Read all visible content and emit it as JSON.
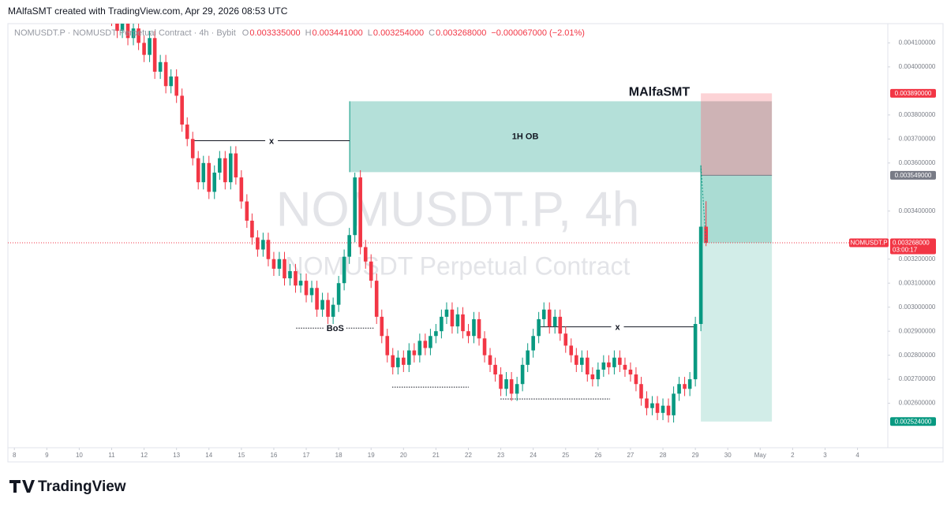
{
  "header": {
    "credit": "MAlfaSMT created with TradingView.com, Apr 29, 2026 08:53 UTC"
  },
  "legend": {
    "symbol_line": "NOMUSDT.P · NOMUSDT Perpetual Contract · 4h · Bybit",
    "ohlc": [
      {
        "key": "O",
        "value": "0.003335000"
      },
      {
        "key": "H",
        "value": "0.003441000"
      },
      {
        "key": "L",
        "value": "0.003254000"
      },
      {
        "key": "C",
        "value": "0.003268000"
      }
    ],
    "change": "−0.000067000 (−2.01%)"
  },
  "watermark": {
    "main": "NOMUSDT.P, 4h",
    "sub": "NOMUSDT Perpetual Contract"
  },
  "footer": {
    "brand": "TradingView"
  },
  "chart_data": {
    "type": "candlestick",
    "up_color": "#089981",
    "down_color": "#f23645",
    "grid": false,
    "xlim": [
      7.8,
      34.57
    ],
    "ylim": [
      0.002415,
      0.00418
    ],
    "xticks": [
      8,
      9,
      10,
      11,
      12,
      13,
      14,
      15,
      16,
      17,
      18,
      19,
      20,
      21,
      22,
      23,
      24,
      25,
      26,
      27,
      28,
      29,
      30,
      {
        "value": 31,
        "label": "May"
      },
      {
        "value": 32,
        "label": "2"
      },
      {
        "value": 33,
        "label": "3"
      },
      {
        "value": 34,
        "label": "4"
      }
    ],
    "yticks": [
      {
        "value": 0.0041,
        "label": "0.004100000"
      },
      {
        "value": 0.004,
        "label": "0.004000000"
      },
      {
        "value": 0.0038,
        "label": "0.003800000"
      },
      {
        "value": 0.0037,
        "label": "0.003700000"
      },
      {
        "value": 0.0036,
        "label": "0.003600000"
      },
      {
        "value": 0.0034,
        "label": "0.003400000"
      },
      {
        "value": 0.0032,
        "label": "0.003200000"
      },
      {
        "value": 0.0031,
        "label": "0.003100000"
      },
      {
        "value": 0.003,
        "label": "0.003000000"
      },
      {
        "value": 0.0029,
        "label": "0.002900000"
      },
      {
        "value": 0.0028,
        "label": "0.002800000"
      },
      {
        "value": 0.0027,
        "label": "0.002700000"
      },
      {
        "value": 0.0026,
        "label": "0.002600000"
      }
    ],
    "x": [
      11,
      11.17,
      11.33,
      11.5,
      11.67,
      11.83,
      12,
      12.17,
      12.33,
      12.5,
      12.67,
      12.83,
      13,
      13.17,
      13.33,
      13.5,
      13.67,
      13.83,
      14,
      14.17,
      14.33,
      14.5,
      14.67,
      14.83,
      15,
      15.17,
      15.33,
      15.5,
      15.67,
      15.83,
      16,
      16.17,
      16.33,
      16.5,
      16.67,
      16.83,
      17,
      17.17,
      17.33,
      17.5,
      17.67,
      17.83,
      18,
      18.17,
      18.33,
      18.5,
      18.67,
      18.83,
      19,
      19.17,
      19.33,
      19.5,
      19.67,
      19.83,
      20,
      20.17,
      20.33,
      20.5,
      20.67,
      20.83,
      21,
      21.17,
      21.33,
      21.5,
      21.67,
      21.83,
      22,
      22.17,
      22.33,
      22.5,
      22.67,
      22.83,
      23,
      23.17,
      23.33,
      23.5,
      23.67,
      23.83,
      24,
      24.17,
      24.33,
      24.5,
      24.67,
      24.83,
      25,
      25.17,
      25.33,
      25.5,
      25.67,
      25.83,
      26,
      26.17,
      26.33,
      26.5,
      26.67,
      26.83,
      27,
      27.17,
      27.33,
      27.5,
      27.67,
      27.83,
      28,
      28.17,
      28.33,
      28.5,
      28.67,
      28.83,
      29,
      29.17,
      29.33
    ],
    "open": [
      0.00423,
      0.0042,
      0.00415,
      0.00418,
      0.00412,
      0.00416,
      0.0041,
      0.00405,
      0.00412,
      0.00398,
      0.00402,
      0.00392,
      0.00396,
      0.00388,
      0.00376,
      0.0037,
      0.00362,
      0.00352,
      0.0036,
      0.00348,
      0.00356,
      0.00362,
      0.00352,
      0.00364,
      0.00354,
      0.00344,
      0.00336,
      0.00329,
      0.00324,
      0.00328,
      0.0032,
      0.00316,
      0.0032,
      0.00312,
      0.00315,
      0.00309,
      0.00311,
      0.00305,
      0.00308,
      0.00299,
      0.00303,
      0.00296,
      0.00301,
      0.0031,
      0.00321,
      0.0033,
      0.00354,
      0.00325,
      0.00319,
      0.00311,
      0.00296,
      0.00288,
      0.0028,
      0.00275,
      0.00279,
      0.00276,
      0.00282,
      0.0028,
      0.00286,
      0.00283,
      0.00288,
      0.0029,
      0.00296,
      0.00299,
      0.00292,
      0.00297,
      0.0029,
      0.00288,
      0.00295,
      0.00287,
      0.0028,
      0.00276,
      0.00272,
      0.00266,
      0.0027,
      0.00264,
      0.00268,
      0.00276,
      0.00282,
      0.00288,
      0.00295,
      0.00299,
      0.00292,
      0.00296,
      0.00289,
      0.00284,
      0.0028,
      0.00276,
      0.00279,
      0.00272,
      0.0027,
      0.00274,
      0.00277,
      0.00275,
      0.00279,
      0.00276,
      0.00274,
      0.00272,
      0.00268,
      0.00262,
      0.00258,
      0.0026,
      0.00256,
      0.00259,
      0.00255,
      0.00264,
      0.00268,
      0.00266,
      0.0027,
      0.00293,
      0.003335
    ],
    "high": [
      0.00426,
      0.00423,
      0.00421,
      0.00421,
      0.00419,
      0.00419,
      0.00413,
      0.00415,
      0.00415,
      0.00405,
      0.00405,
      0.00399,
      0.00399,
      0.00391,
      0.00379,
      0.00373,
      0.00365,
      0.00363,
      0.00363,
      0.00359,
      0.00365,
      0.00365,
      0.00367,
      0.00367,
      0.00357,
      0.00347,
      0.00339,
      0.00332,
      0.00331,
      0.00331,
      0.00323,
      0.00323,
      0.00323,
      0.00318,
      0.00318,
      0.00314,
      0.00314,
      0.00311,
      0.00311,
      0.00306,
      0.00306,
      0.00304,
      0.00313,
      0.00324,
      0.00333,
      0.00356,
      0.00357,
      0.00328,
      0.00322,
      0.00314,
      0.00299,
      0.00291,
      0.00283,
      0.00282,
      0.00282,
      0.00285,
      0.00285,
      0.00289,
      0.00289,
      0.00291,
      0.00293,
      0.00299,
      0.00302,
      0.00302,
      0.003,
      0.003,
      0.00293,
      0.00298,
      0.00298,
      0.0029,
      0.00283,
      0.00279,
      0.00275,
      0.00273,
      0.00273,
      0.00271,
      0.00279,
      0.00285,
      0.00291,
      0.00298,
      0.00302,
      0.00302,
      0.00299,
      0.00299,
      0.00292,
      0.00287,
      0.00283,
      0.00282,
      0.00282,
      0.00275,
      0.00277,
      0.0028,
      0.0028,
      0.00282,
      0.00282,
      0.00279,
      0.00277,
      0.00275,
      0.00271,
      0.00265,
      0.00263,
      0.00263,
      0.00262,
      0.00262,
      0.00267,
      0.00271,
      0.00271,
      0.00273,
      0.00296,
      0.00359,
      0.003441
    ],
    "low": [
      0.00417,
      0.00412,
      0.00412,
      0.00409,
      0.00409,
      0.00407,
      0.00402,
      0.00402,
      0.00395,
      0.00395,
      0.00389,
      0.00389,
      0.00385,
      0.00373,
      0.00367,
      0.00359,
      0.00349,
      0.00349,
      0.00345,
      0.00345,
      0.00353,
      0.00349,
      0.00349,
      0.00351,
      0.00341,
      0.00333,
      0.00326,
      0.00321,
      0.00321,
      0.00317,
      0.00313,
      0.00313,
      0.00309,
      0.00309,
      0.00306,
      0.00306,
      0.00302,
      0.00302,
      0.00296,
      0.00296,
      0.00293,
      0.00293,
      0.00298,
      0.00307,
      0.00318,
      0.00327,
      0.00322,
      0.00316,
      0.00308,
      0.00293,
      0.00285,
      0.00277,
      0.00272,
      0.00272,
      0.00273,
      0.00273,
      0.00277,
      0.00277,
      0.0028,
      0.0028,
      0.00285,
      0.00287,
      0.00293,
      0.00289,
      0.00289,
      0.00287,
      0.00285,
      0.00285,
      0.00284,
      0.00277,
      0.00273,
      0.00269,
      0.00263,
      0.00263,
      0.00261,
      0.00261,
      0.00265,
      0.00273,
      0.00279,
      0.00285,
      0.00292,
      0.00289,
      0.00289,
      0.00286,
      0.00281,
      0.00277,
      0.00273,
      0.00273,
      0.00269,
      0.00267,
      0.00267,
      0.00271,
      0.00272,
      0.00272,
      0.00273,
      0.00271,
      0.00269,
      0.00265,
      0.00259,
      0.00255,
      0.00255,
      0.00253,
      0.00253,
      0.00252,
      0.00252,
      0.00261,
      0.00263,
      0.00263,
      0.00267,
      0.0029,
      0.003254
    ],
    "close": [
      0.0042,
      0.00415,
      0.00418,
      0.00412,
      0.00416,
      0.0041,
      0.00405,
      0.00412,
      0.00398,
      0.00402,
      0.00392,
      0.00396,
      0.00388,
      0.00376,
      0.0037,
      0.00362,
      0.00352,
      0.0036,
      0.00348,
      0.00356,
      0.00362,
      0.00352,
      0.00364,
      0.00354,
      0.00344,
      0.00336,
      0.00329,
      0.00324,
      0.00328,
      0.0032,
      0.00316,
      0.0032,
      0.00312,
      0.00315,
      0.00309,
      0.00311,
      0.00305,
      0.00308,
      0.00299,
      0.00303,
      0.00296,
      0.00301,
      0.0031,
      0.00321,
      0.0033,
      0.00354,
      0.00325,
      0.00319,
      0.00311,
      0.00296,
      0.00288,
      0.0028,
      0.00275,
      0.00279,
      0.00276,
      0.00282,
      0.0028,
      0.00286,
      0.00283,
      0.00288,
      0.0029,
      0.00296,
      0.00299,
      0.00292,
      0.00297,
      0.0029,
      0.00288,
      0.00295,
      0.00287,
      0.0028,
      0.00276,
      0.00272,
      0.00266,
      0.0027,
      0.00264,
      0.00268,
      0.00276,
      0.00282,
      0.00288,
      0.00295,
      0.00299,
      0.00292,
      0.00296,
      0.00289,
      0.00284,
      0.0028,
      0.00276,
      0.00279,
      0.00272,
      0.0027,
      0.00274,
      0.00277,
      0.00275,
      0.00279,
      0.00276,
      0.00274,
      0.00272,
      0.00268,
      0.00262,
      0.00258,
      0.0026,
      0.00256,
      0.00259,
      0.00255,
      0.00264,
      0.00268,
      0.00266,
      0.0027,
      0.00293,
      0.003335,
      0.003268
    ],
    "annotations": {
      "author": "MAlfaSMT",
      "ob": {
        "label": "1H OB",
        "x": [
          18.34,
          29.17
        ],
        "y": [
          0.003562,
          0.003857
        ]
      },
      "swing_lines": [
        {
          "label": "x",
          "x": [
            13.52,
            18.34
          ],
          "y": 0.003693
        },
        {
          "label": "x",
          "x": [
            24.18,
            29.02
          ],
          "y": 0.002918
        }
      ],
      "bos": {
        "label": "BoS",
        "x": [
          16.69,
          19.1
        ],
        "y": 0.002913
      },
      "dotted_lines": [
        {
          "x": [
            19.65,
            22.01
          ],
          "y": 0.002667
        },
        {
          "x": [
            22.99,
            26.37
          ],
          "y": 0.002618
        }
      ]
    },
    "position": {
      "x": [
        29.17,
        31.36
      ],
      "stop": {
        "value": 0.00389,
        "label": "0.003890000"
      },
      "entry": {
        "value": 0.003549,
        "label": "0.003549000"
      },
      "target": {
        "value": 0.002524,
        "label": "0.002524000"
      }
    },
    "last_price": {
      "symbol": "NOMUSDT.P",
      "value": 0.003268,
      "label": "0.003268000",
      "countdown": "03:00:17"
    }
  }
}
